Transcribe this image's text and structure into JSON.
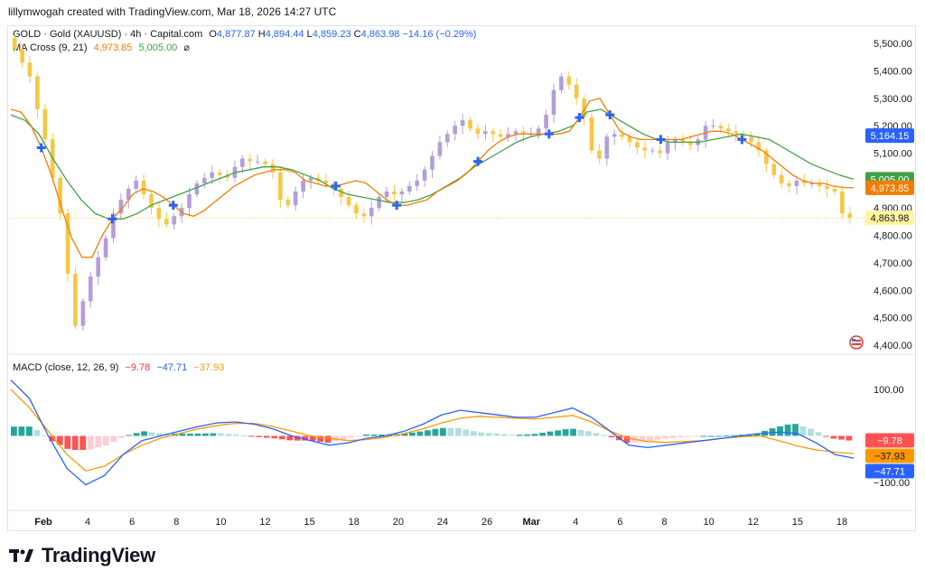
{
  "header": {
    "attribution": "lillymwogah created with TradingView.com, Mar 18, 2026 14:27 UTC"
  },
  "legend": {
    "symbol": "GOLD · Gold (XAUUSD) · 4h · Capital.com",
    "o_label": "O",
    "o": "4,877.87",
    "h_label": "H",
    "h": "4,894.44",
    "l_label": "L",
    "l": "4,859.23",
    "c_label": "C",
    "c": "4,863.98",
    "change": "−14.16 (−0.29%)",
    "ma_title": "MA Cross (9, 21)",
    "ma_fast": "4,973.85",
    "ma_slow": "5,005.00",
    "ma_icon": "eye-off-icon",
    "macd_title": "MACD (close, 12, 26, 9)",
    "macd_hist": "−9.78",
    "macd_line": "−47.71",
    "macd_signal": "−37.93"
  },
  "brand": {
    "logo_icon": "tradingview-logo-icon",
    "name": "TradingView"
  },
  "flag_icon": "us-flag-icon",
  "colors": {
    "up": "#b39ddb",
    "down": "#f6c744",
    "fast_ma": "#f57c00",
    "slow_ma": "#43a047",
    "cross": "#2962ff",
    "macd": "#2962ff",
    "signal": "#ff9800",
    "hist_up_strong": "#26a69a",
    "hist_up_weak": "#b2dfdb",
    "hist_down_strong": "#ff5252",
    "hist_down_weak": "#ffcdd2",
    "current_price": "#fff59d"
  },
  "chart_data": {
    "type": "candlestick",
    "x_ticks": [
      "Feb",
      "4",
      "6",
      "8",
      "10",
      "12",
      "15",
      "18",
      "20",
      "24",
      "26",
      "Mar",
      "4",
      "6",
      "8",
      "10",
      "12",
      "15",
      "18"
    ],
    "price_axis": {
      "ticks": [
        "5,500.00",
        "5,400.00",
        "5,300.00",
        "5,200.00",
        "5,100.00",
        "4,900.00",
        "4,800.00",
        "4,700.00",
        "4,600.00",
        "4,500.00",
        "4,400.00"
      ],
      "ylim": [
        4380,
        5560
      ]
    },
    "price_labels": [
      {
        "value": 5164.15,
        "text": "5,164.15",
        "color": "#2962ff"
      },
      {
        "value": 5005.0,
        "text": "5,005.00",
        "color": "#43a047"
      },
      {
        "value": 4973.85,
        "text": "4,973.85",
        "color": "#f57c00"
      },
      {
        "value": 4863.98,
        "text": "4,863.98",
        "color": "#fff59d"
      }
    ],
    "close": [
      5480,
      5430,
      5380,
      5260,
      5150,
      5010,
      4880,
      4660,
      4470,
      4560,
      4650,
      4720,
      4790,
      4880,
      4930,
      4970,
      5000,
      4950,
      4900,
      4860,
      4840,
      4870,
      4900,
      4950,
      4990,
      5010,
      5030,
      5020,
      5010,
      5050,
      5080,
      5070,
      5070,
      5060,
      5030,
      4930,
      4910,
      4960,
      5000,
      5010,
      5000,
      4990,
      4970,
      4940,
      4910,
      4880,
      4870,
      4900,
      4940,
      4960,
      4950,
      4960,
      4980,
      5000,
      5040,
      5090,
      5140,
      5170,
      5200,
      5220,
      5190,
      5170,
      5180,
      5170,
      5160,
      5170,
      5180,
      5170,
      5170,
      5190,
      5240,
      5330,
      5380,
      5350,
      5300,
      5230,
      5110,
      5080,
      5160,
      5170,
      5160,
      5140,
      5120,
      5110,
      5110,
      5100,
      5140,
      5150,
      5140,
      5130,
      5150,
      5200,
      5200,
      5190,
      5180,
      5170,
      5160,
      5140,
      5110,
      5060,
      5020,
      4990,
      4980,
      5000,
      4990,
      4990,
      4980,
      4970,
      4960,
      4880,
      4864
    ],
    "fast_ma": [
      5260,
      5250,
      5200,
      5120,
      5020,
      4900,
      4790,
      4720,
      4720,
      4800,
      4860,
      4900,
      4950,
      4970,
      4960,
      4940,
      4910,
      4880,
      4870,
      4890,
      4920,
      4950,
      4980,
      5000,
      5020,
      5030,
      5040,
      5040,
      5030,
      5000,
      4990,
      4980,
      4980,
      4990,
      5000,
      4990,
      4960,
      4930,
      4910,
      4910,
      4920,
      4930,
      4960,
      4980,
      5000,
      5030,
      5070,
      5110,
      5140,
      5160,
      5170,
      5170,
      5170,
      5170,
      5170,
      5180,
      5230,
      5290,
      5300,
      5240,
      5180,
      5160,
      5150,
      5150,
      5150,
      5150,
      5150,
      5160,
      5170,
      5180,
      5180,
      5170,
      5150,
      5130,
      5110,
      5080,
      5050,
      5020,
      5000,
      4990,
      4990,
      4980,
      4975,
      4974
    ],
    "slow_ma": [
      5240,
      5220,
      5170,
      5080,
      5000,
      4930,
      4880,
      4860,
      4860,
      4880,
      4910,
      4930,
      4950,
      4970,
      4990,
      5010,
      5030,
      5040,
      5050,
      5050,
      5040,
      5020,
      5000,
      4970,
      4950,
      4940,
      4930,
      4920,
      4920,
      4930,
      4950,
      4980,
      5010,
      5050,
      5080,
      5110,
      5140,
      5160,
      5170,
      5180,
      5200,
      5250,
      5260,
      5230,
      5200,
      5170,
      5150,
      5140,
      5140,
      5140,
      5150,
      5160,
      5170,
      5160,
      5150,
      5120,
      5090,
      5060,
      5040,
      5020,
      5005
    ],
    "macd": [
      120,
      80,
      0,
      -70,
      -105,
      -85,
      -40,
      -10,
      0,
      10,
      20,
      28,
      30,
      25,
      15,
      0,
      -10,
      -20,
      -15,
      -5,
      0,
      10,
      25,
      45,
      55,
      50,
      45,
      40,
      40,
      50,
      60,
      40,
      10,
      -20,
      -25,
      -20,
      -15,
      -10,
      -5,
      0,
      5,
      8,
      5,
      -15,
      -40,
      -47.71
    ],
    "signal": [
      100,
      60,
      10,
      -40,
      -75,
      -65,
      -40,
      -20,
      -5,
      5,
      15,
      22,
      27,
      27,
      20,
      10,
      0,
      -5,
      -10,
      -8,
      -3,
      5,
      15,
      28,
      38,
      42,
      40,
      38,
      36,
      40,
      44,
      30,
      10,
      -5,
      -12,
      -14,
      -12,
      -10,
      -5,
      -2,
      0,
      -10,
      -22,
      -30,
      -35,
      -37.93
    ],
    "macd_axis": {
      "ticks": [
        "100.00",
        "−100.00"
      ],
      "ylim": [
        -160,
        160
      ]
    },
    "macd_labels": [
      {
        "value": -9.78,
        "text": "−9.78",
        "color": "#ff5252"
      },
      {
        "value": -37.93,
        "text": "−37.93",
        "color": "#ff9800"
      },
      {
        "value": -47.71,
        "text": "−47.71",
        "color": "#2962ff"
      }
    ]
  }
}
